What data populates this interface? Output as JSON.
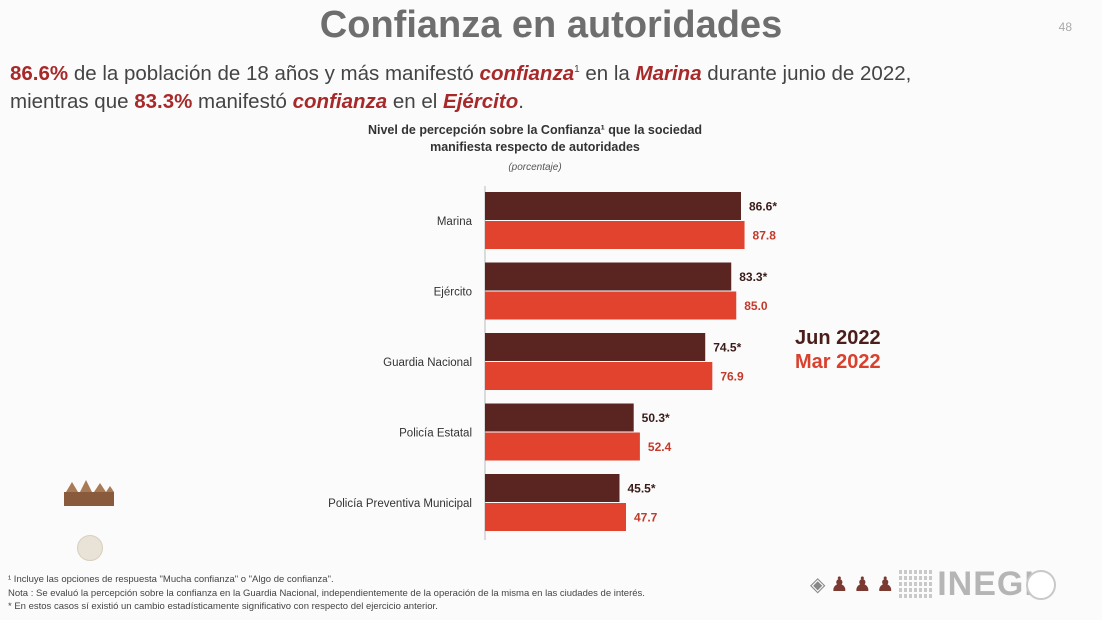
{
  "page": {
    "title": "Confianza en autoridades",
    "page_number": "48",
    "lead": {
      "p1_value": "86.6%",
      "p1_a": " de la población de 18 años y más manifestó ",
      "p1_conf": "confianza",
      "p1_sup": "1",
      "p1_b": " en la ",
      "p1_marina": "Marina",
      "p1_c": " durante junio de 2022,",
      "p2_a": "mientras que ",
      "p2_value": "83.3%",
      "p2_b": " manifestó ",
      "p2_conf": "confianza",
      "p2_c": " en el ",
      "p2_ejercito": "Ejército",
      "p2_d": "."
    },
    "notes": [
      "¹ Incluye las opciones de respuesta \"Mucha confianza\" o \"Algo de confianza\".",
      "Nota : Se evaluó la percepción sobre la confianza en la Guardia Nacional, independientemente de la operación de la misma en las ciudades de interés.",
      "* En estos casos sí existió un cambio estadísticamente significativo con respecto del ejercicio anterior."
    ],
    "logo_text": "INEGI"
  },
  "chart_data": {
    "type": "bar",
    "orientation": "horizontal",
    "title_line1": "Nivel de percepción sobre la Confianza¹ que la sociedad",
    "title_line2": "manifiesta respecto de autoridades",
    "subtitle": "(porcentaje)",
    "categories": [
      "Marina",
      "Ejército",
      "Guardia Nacional",
      "Policía Estatal",
      "Policía Preventiva Municipal"
    ],
    "series": [
      {
        "name": "Jun 2022",
        "color": "#5a2420",
        "label_color": "#3a1c19",
        "values": [
          86.6,
          83.3,
          74.5,
          50.3,
          45.5
        ],
        "labels": [
          "86.6*",
          "83.3*",
          "74.5*",
          "50.3*",
          "45.5*"
        ]
      },
      {
        "name": "Mar 2022",
        "color": "#e2432f",
        "label_color": "#c23a2a",
        "values": [
          87.8,
          85.0,
          76.9,
          52.4,
          47.7
        ],
        "labels": [
          "87.8",
          "85.0",
          "76.9",
          "52.4",
          "47.7"
        ]
      }
    ],
    "xlim": [
      0,
      100
    ],
    "grid": false,
    "legend_position": "right"
  }
}
